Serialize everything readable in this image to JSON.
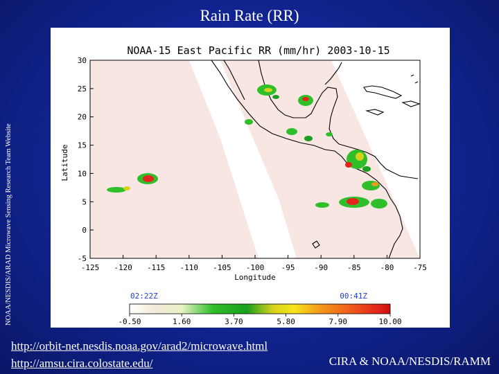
{
  "slide": {
    "title": "Rain Rate (RR)",
    "side_credit": "NOAA/NESDIS/ARAD Microwave Sensing Research Team Website",
    "links": [
      "http://orbit-net.nesdis.noaa.gov/arad2/microwave.html",
      "http://amsu.cira.colostate.edu/"
    ],
    "footer_credit": "CIRA & NOAA/NESDIS/RAMM"
  },
  "figure": {
    "title": "NOAA-15 East Pacific RR (mm/hr) 2003-10-15",
    "xlabel": "Longitude",
    "ylabel": "Latitude",
    "x_ticks": [
      "-125",
      "-120",
      "-115",
      "-110",
      "-105",
      "-100",
      "-95",
      "-90",
      "-85",
      "-80",
      "-75"
    ],
    "y_ticks": [
      "30",
      "25",
      "20",
      "15",
      "10",
      "5",
      "0",
      "-5"
    ],
    "x_range": [
      -125,
      -75
    ],
    "y_range": [
      -5,
      30
    ],
    "overpass_times": [
      "02:22Z",
      "00:41Z"
    ],
    "colorbar_ticks": [
      "-0.50",
      "1.60",
      "3.70",
      "5.80",
      "7.90",
      "10.00"
    ],
    "colorbar_range": [
      -0.5,
      10.0
    ],
    "colors": {
      "swath": "#f8e6e3",
      "land_line": "#000000",
      "time_label": "#1f3fd6",
      "colorbar": [
        "#ffffff",
        "#f4ead8",
        "#e8f2c6",
        "#2fbf2a",
        "#1aa01e",
        "#d6d21c",
        "#f6e51a",
        "#f39a1b",
        "#f05a1a",
        "#e4251b",
        "#cc1010"
      ]
    }
  }
}
